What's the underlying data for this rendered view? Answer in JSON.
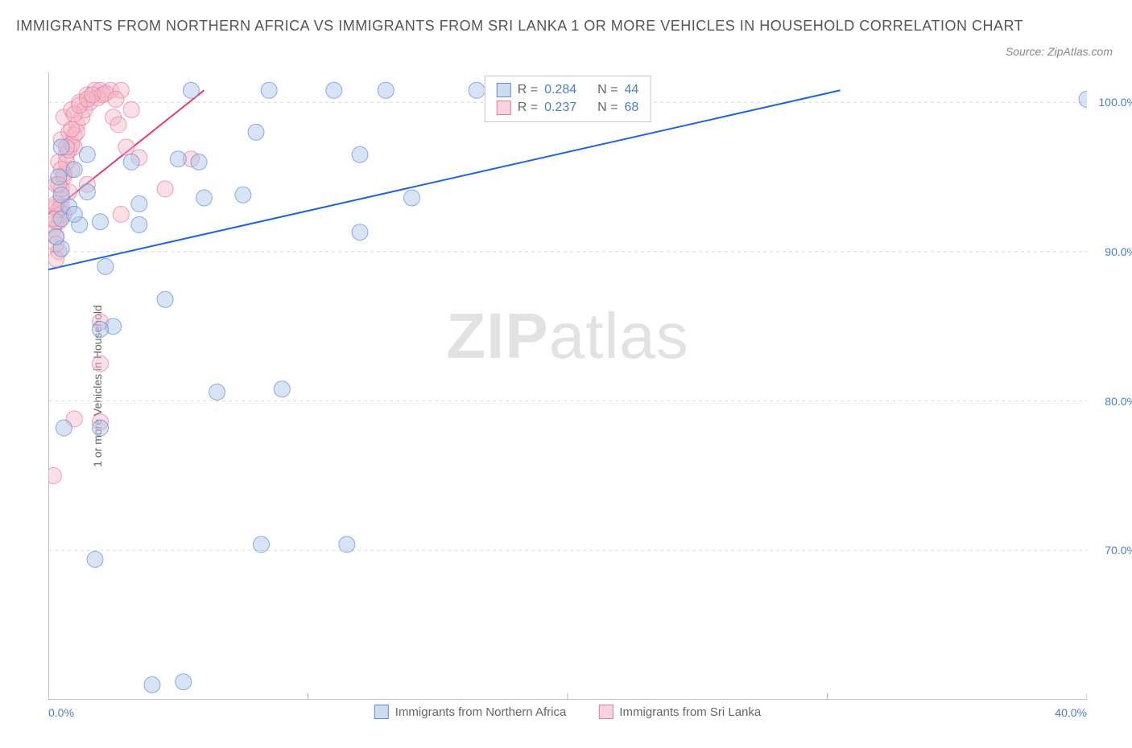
{
  "title": "IMMIGRANTS FROM NORTHERN AFRICA VS IMMIGRANTS FROM SRI LANKA 1 OR MORE VEHICLES IN HOUSEHOLD CORRELATION CHART",
  "source": "Source: ZipAtlas.com",
  "watermark_zip": "ZIP",
  "watermark_atlas": "atlas",
  "y_axis_label": "1 or more Vehicles in Household",
  "chart": {
    "type": "scatter",
    "xlim": [
      0,
      40
    ],
    "ylim": [
      60,
      102
    ],
    "x_ticks": [
      0,
      10,
      20,
      30,
      40
    ],
    "x_tick_labels": [
      "0.0%",
      "",
      "",
      "",
      "40.0%"
    ],
    "y_ticks": [
      70,
      80,
      90,
      100
    ],
    "y_tick_labels": [
      "70.0%",
      "80.0%",
      "90.0%",
      "100.0%"
    ],
    "background_color": "#ffffff",
    "grid_color": "#d8d8d8",
    "grid_dash": "4 4",
    "axis_color": "#b0b0b0",
    "tick_label_color": "#4a7ec9",
    "label_color": "#666666",
    "label_fontsize": 14,
    "marker_radius": 10,
    "marker_opacity": 0.45,
    "series": [
      {
        "name": "Immigrants from Northern Africa",
        "color_fill": "#a8c4e8",
        "color_stroke": "#5b8fd6",
        "R": 0.284,
        "N": 44,
        "reg_line": {
          "x1": 0,
          "y1": 88.8,
          "x2": 30.5,
          "y2": 100.8,
          "color": "#1b66d6",
          "width": 2.0
        },
        "points": [
          [
            0.5,
            92.2
          ],
          [
            0.8,
            93.0
          ],
          [
            0.5,
            93.8
          ],
          [
            1.2,
            91.8
          ],
          [
            1.0,
            92.5
          ],
          [
            1.5,
            94.0
          ],
          [
            2.0,
            92.0
          ],
          [
            0.5,
            97.0
          ],
          [
            3.2,
            96.0
          ],
          [
            5.0,
            96.2
          ],
          [
            5.8,
            96.0
          ],
          [
            6.0,
            93.6
          ],
          [
            3.5,
            93.2
          ],
          [
            3.5,
            91.8
          ],
          [
            4.5,
            86.8
          ],
          [
            2.2,
            89.0
          ],
          [
            2.0,
            78.2
          ],
          [
            0.6,
            78.2
          ],
          [
            1.8,
            69.4
          ],
          [
            4.0,
            61.0
          ],
          [
            5.2,
            61.2
          ],
          [
            7.5,
            93.8
          ],
          [
            5.5,
            100.8
          ],
          [
            8.5,
            100.8
          ],
          [
            11.0,
            100.8
          ],
          [
            13.0,
            100.8
          ],
          [
            8.0,
            98.0
          ],
          [
            12.0,
            91.3
          ],
          [
            9.0,
            80.8
          ],
          [
            8.2,
            70.4
          ],
          [
            11.5,
            70.4
          ],
          [
            14.0,
            93.6
          ],
          [
            16.5,
            100.8
          ],
          [
            18.0,
            101.0
          ],
          [
            40.0,
            100.2
          ],
          [
            2.5,
            85.0
          ],
          [
            1.0,
            95.5
          ],
          [
            0.5,
            90.2
          ],
          [
            0.3,
            91.0
          ],
          [
            2.0,
            84.8
          ],
          [
            6.5,
            80.6
          ],
          [
            12.0,
            96.5
          ],
          [
            0.4,
            95.0
          ],
          [
            1.5,
            96.5
          ]
        ]
      },
      {
        "name": "Immigrants from Sri Lanka",
        "color_fill": "#f4b8c8",
        "color_stroke": "#e87a9e",
        "R": 0.237,
        "N": 68,
        "reg_line": {
          "x1": 0,
          "y1": 92.5,
          "x2": 6.0,
          "y2": 100.8,
          "color": "#e63b78",
          "width": 2.0
        },
        "points": [
          [
            0.4,
            92.0
          ],
          [
            0.6,
            92.5
          ],
          [
            0.3,
            93.0
          ],
          [
            0.5,
            93.5
          ],
          [
            0.8,
            94.0
          ],
          [
            0.3,
            94.5
          ],
          [
            0.6,
            95.0
          ],
          [
            0.9,
            95.5
          ],
          [
            0.4,
            96.0
          ],
          [
            0.7,
            96.5
          ],
          [
            1.0,
            97.0
          ],
          [
            0.5,
            97.5
          ],
          [
            0.8,
            98.0
          ],
          [
            1.1,
            98.5
          ],
          [
            0.6,
            99.0
          ],
          [
            0.9,
            99.5
          ],
          [
            1.2,
            100.0
          ],
          [
            1.5,
            100.5
          ],
          [
            1.8,
            100.8
          ],
          [
            2.0,
            100.8
          ],
          [
            2.4,
            100.8
          ],
          [
            2.8,
            100.8
          ],
          [
            0.2,
            91.5
          ],
          [
            0.3,
            91.0
          ],
          [
            0.3,
            92.0
          ],
          [
            0.4,
            92.8
          ],
          [
            0.5,
            93.0
          ],
          [
            0.5,
            94.2
          ],
          [
            0.6,
            95.2
          ],
          [
            0.7,
            96.0
          ],
          [
            0.8,
            96.8
          ],
          [
            0.9,
            97.2
          ],
          [
            1.0,
            97.8
          ],
          [
            1.1,
            98.0
          ],
          [
            1.3,
            99.0
          ],
          [
            1.4,
            99.5
          ],
          [
            1.6,
            100.0
          ],
          [
            1.9,
            100.3
          ],
          [
            2.1,
            100.5
          ],
          [
            2.5,
            99.0
          ],
          [
            2.7,
            98.5
          ],
          [
            3.0,
            97.0
          ],
          [
            2.0,
            85.3
          ],
          [
            1.0,
            78.8
          ],
          [
            2.0,
            78.6
          ],
          [
            0.2,
            75.0
          ],
          [
            2.0,
            82.5
          ],
          [
            0.4,
            90.0
          ],
          [
            0.3,
            90.5
          ],
          [
            0.2,
            92.2
          ],
          [
            0.3,
            93.2
          ],
          [
            0.4,
            94.5
          ],
          [
            0.5,
            95.5
          ],
          [
            0.7,
            97.0
          ],
          [
            0.9,
            98.2
          ],
          [
            1.0,
            99.2
          ],
          [
            1.2,
            99.8
          ],
          [
            1.5,
            100.2
          ],
          [
            1.7,
            100.5
          ],
          [
            2.2,
            100.6
          ],
          [
            2.6,
            100.2
          ],
          [
            3.2,
            99.5
          ],
          [
            3.5,
            96.3
          ],
          [
            4.5,
            94.2
          ],
          [
            5.5,
            96.2
          ],
          [
            0.3,
            89.5
          ],
          [
            2.8,
            92.5
          ],
          [
            1.5,
            94.5
          ]
        ]
      }
    ]
  },
  "legend": {
    "r_label": "R =",
    "n_label": "N =",
    "swatch_border_blue": "#5b8fd6",
    "swatch_fill_blue": "#cddcf0",
    "swatch_border_pink": "#e87a9e",
    "swatch_fill_pink": "#f7d4de"
  },
  "bottom_legend": {
    "item1": "Immigrants from Northern Africa",
    "item2": "Immigrants from Sri Lanka"
  }
}
